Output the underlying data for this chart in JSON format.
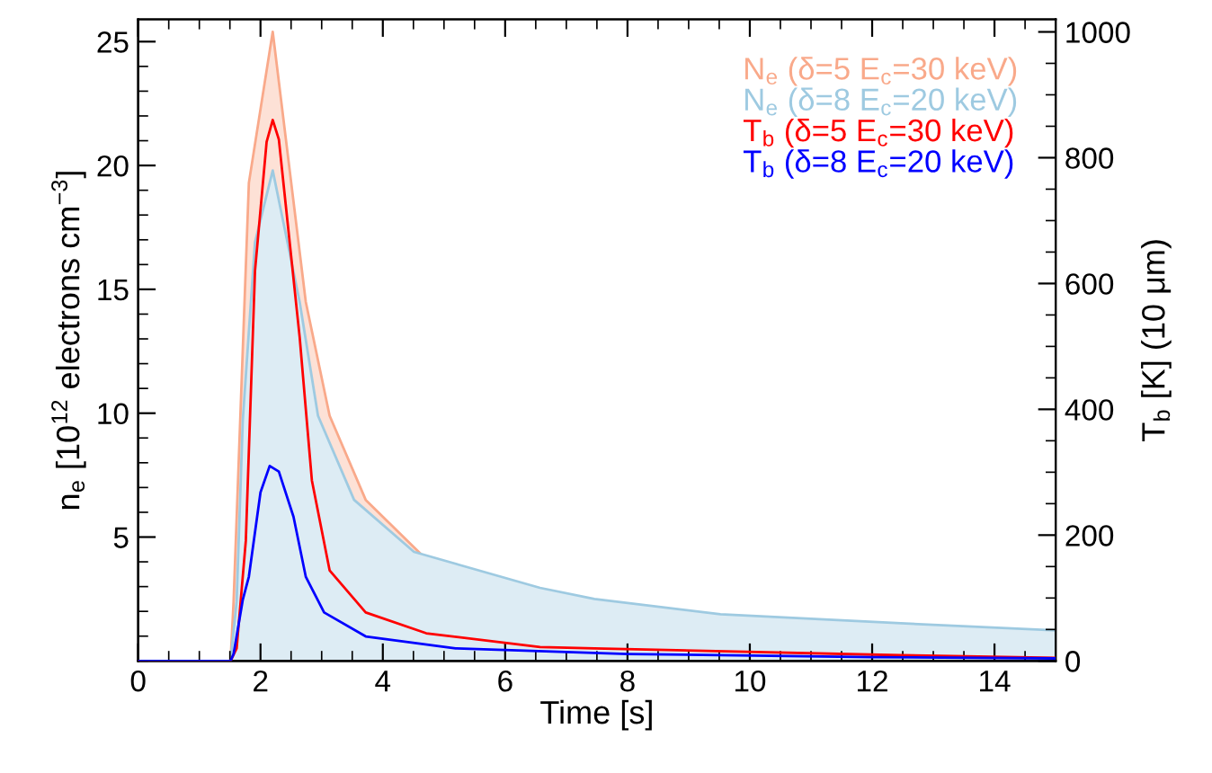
{
  "chart_data": {
    "type": "area",
    "xlabel": "Time [s]",
    "ylabel": "n$_{e}$ [10$^{12}$ electrons cm$^{−3}$]",
    "y2label": "T$_{b}$ [K] (10 μm)",
    "xlim": [
      0,
      15
    ],
    "xticks": [
      0,
      2,
      4,
      6,
      8,
      10,
      12,
      14
    ],
    "ylim": [
      0,
      25.9
    ],
    "yticks": [
      5,
      10,
      15,
      20,
      25
    ],
    "y2lim": [
      0,
      1020
    ],
    "y2ticks": [
      0,
      200,
      400,
      600,
      800,
      1000
    ],
    "grid": false,
    "legend": "top right",
    "series": [
      {
        "name": "N$_{e}$ (δ=5 E$_{c}$=30 keV)",
        "color": "#f9a98a",
        "x": [
          0,
          1.51,
          1.56,
          1.81,
          2.2,
          2.74,
          3.13,
          3.72,
          4.71,
          6.57,
          7.46,
          9.52,
          12.47,
          15
        ],
        "values": [
          0,
          0,
          2.4,
          19.3,
          25.4,
          14.5,
          9.9,
          6.5,
          4.1,
          2.9,
          2.45,
          1.83,
          1.47,
          1.18
        ]
      },
      {
        "name": "N$_{e}$ (δ=8 E$_{c}$=20 keV)",
        "color": "#9ecae1",
        "x": [
          0,
          1.51,
          1.61,
          1.71,
          1.91,
          2.2,
          2.64,
          2.94,
          3.53,
          4.51,
          6.57,
          7.46,
          9.52,
          12.47,
          15
        ],
        "values": [
          0,
          0,
          2.4,
          9.7,
          16.9,
          19.8,
          14.5,
          9.9,
          6.5,
          4.4,
          2.95,
          2.5,
          1.88,
          1.52,
          1.23
        ]
      },
      {
        "name": "T$_{b}$ (δ=5 E$_{c}$=30 keV)",
        "type": "line",
        "axis": "y2",
        "color": "#ff0000",
        "x": [
          0,
          1.51,
          1.61,
          1.76,
          1.91,
          2.1,
          2.2,
          2.3,
          2.64,
          2.84,
          3.13,
          3.72,
          4.71,
          6.57,
          7.46,
          12.47,
          15
        ],
        "values": [
          0,
          0,
          20,
          191,
          620,
          825,
          860,
          829,
          515,
          287,
          144,
          77,
          44,
          22,
          20,
          9,
          5
        ]
      },
      {
        "name": "T$_{b}$ (δ=8 E$_{c}$=20 keV)",
        "type": "line",
        "axis": "y2",
        "color": "#0000ff",
        "x": [
          0,
          1.51,
          1.56,
          1.71,
          1.81,
          2.0,
          2.15,
          2.3,
          2.54,
          2.74,
          3.04,
          3.72,
          5.19,
          8,
          12,
          15
        ],
        "values": [
          0,
          0,
          11,
          97,
          134,
          268,
          310,
          301,
          229,
          134,
          77,
          39,
          20,
          11,
          6,
          4
        ]
      }
    ]
  }
}
